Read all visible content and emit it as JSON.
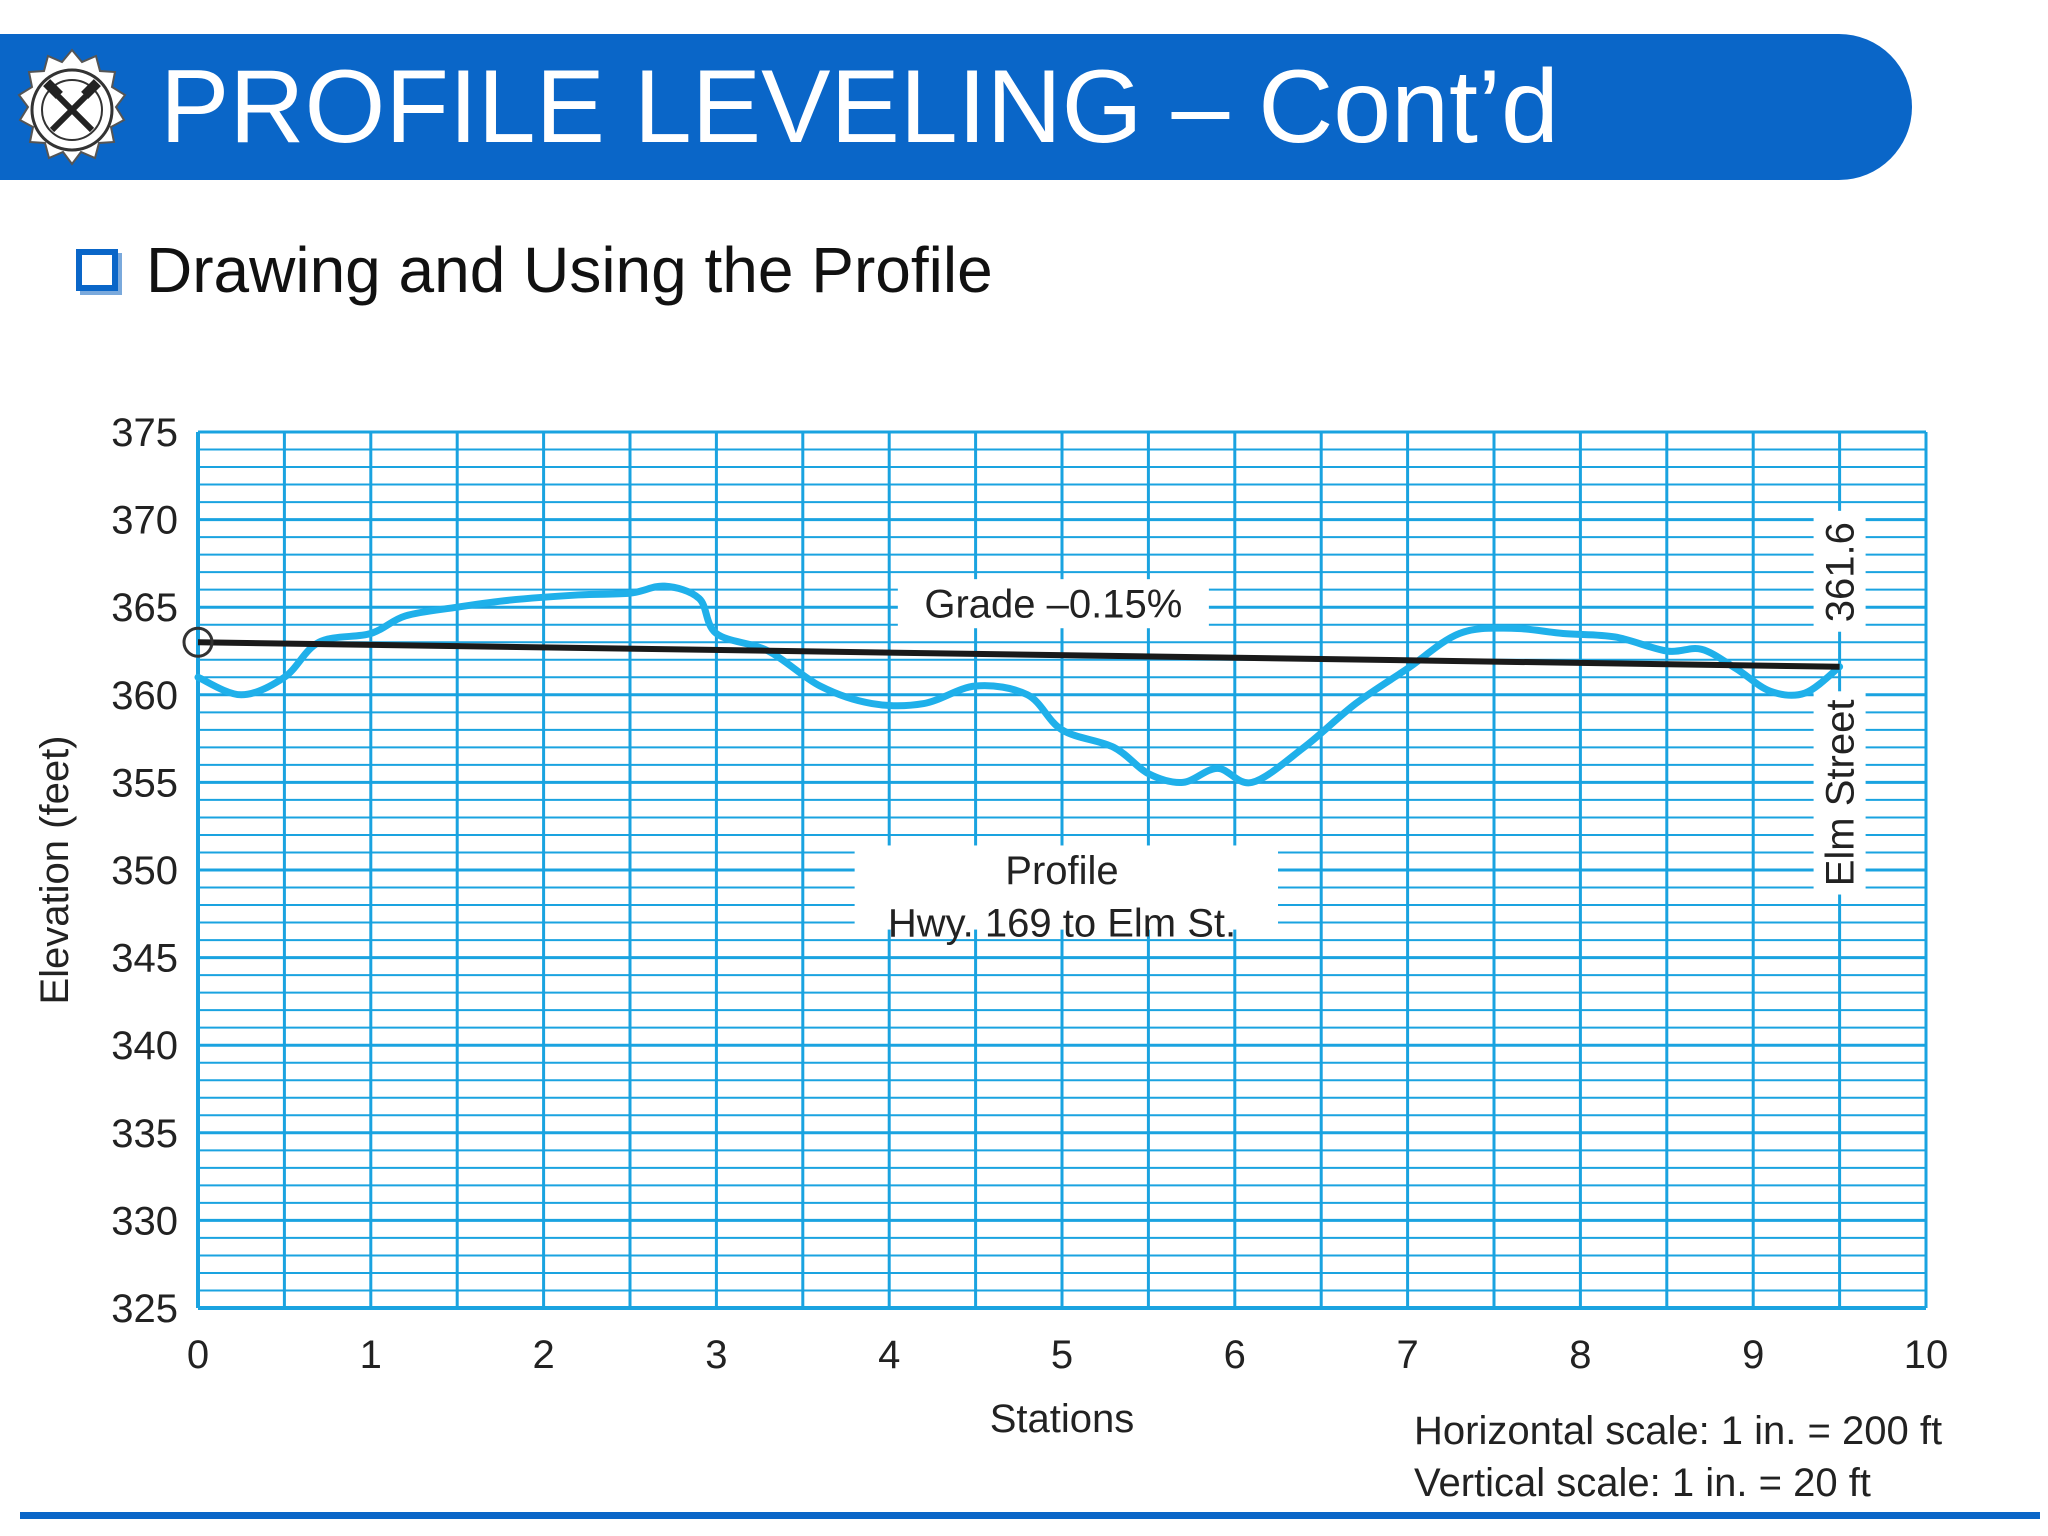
{
  "slide": {
    "title": "PROFILE LEVELING – Cont’d",
    "bullet": "Drawing and Using the Profile",
    "logo_icon": "crossed-pick-hammer-gear-seal-icon"
  },
  "colors": {
    "title_bar": "#0a66c8",
    "grid": "#1aa3e0",
    "profile_line": "#1fb0ea",
    "grade_line": "#1a1a1a"
  },
  "chart_data": {
    "type": "line",
    "title": "",
    "xlabel": "Stations",
    "ylabel": "Elevation (feet)",
    "xlim": [
      0,
      10
    ],
    "ylim": [
      325,
      375
    ],
    "x_ticks": [
      "0",
      "1",
      "2",
      "3",
      "4",
      "5",
      "6",
      "7",
      "8",
      "9",
      "10"
    ],
    "y_ticks": [
      "375",
      "370",
      "365",
      "360",
      "355",
      "350",
      "345",
      "340",
      "335",
      "330",
      "325"
    ],
    "grid": true,
    "series": [
      {
        "x": [
          0,
          0.25,
          0.5,
          0.7,
          1.0,
          1.2,
          1.5,
          1.8,
          2.2,
          2.5,
          2.7,
          2.9,
          3.0,
          3.3,
          3.6,
          3.9,
          4.2,
          4.5,
          4.8,
          5.0,
          5.3,
          5.5,
          5.7,
          5.9,
          6.1,
          6.4,
          6.7,
          7.0,
          7.3,
          7.6,
          7.9,
          8.2,
          8.5,
          8.7,
          8.9,
          9.1,
          9.3,
          9.5
        ],
        "y": [
          361,
          360,
          361,
          363,
          363.5,
          364.5,
          365,
          365.4,
          365.7,
          365.8,
          366.2,
          365.5,
          363.5,
          362.5,
          360.5,
          359.5,
          359.5,
          360.5,
          360,
          358,
          357,
          355.5,
          355,
          355.8,
          355,
          357,
          359.5,
          361.5,
          363.5,
          363.8,
          363.5,
          363.3,
          362.5,
          362.6,
          361.5,
          360.2,
          360.1,
          361.6
        ]
      },
      {
        "x": [
          0,
          9.5
        ],
        "y": [
          363,
          361.6
        ]
      }
    ],
    "annotations": {
      "grade": "Grade –0.15%",
      "profile_title": "Profile",
      "profile_subtitle": "Hwy. 169 to Elm St.",
      "end_elevation": "361.6",
      "end_station_label": "Elm Street",
      "scale_horizontal": "Horizontal scale:  1 in. = 200 ft",
      "scale_vertical": "Vertical scale:  1 in. = 20 ft"
    }
  }
}
